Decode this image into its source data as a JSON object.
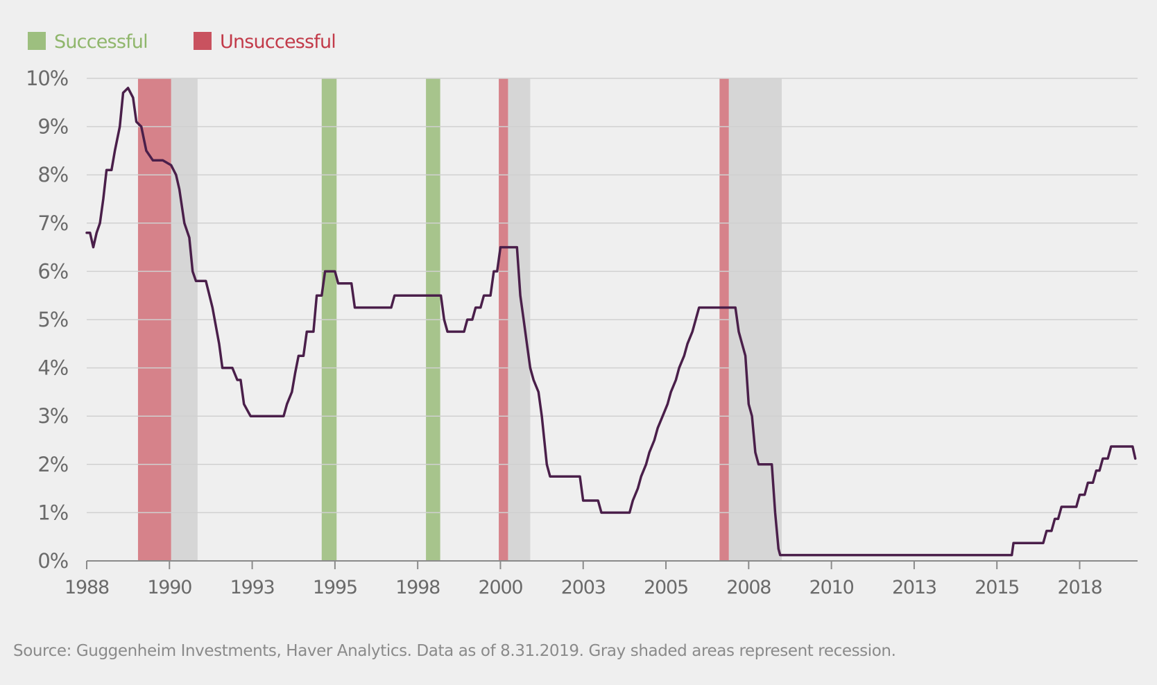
{
  "chart_data": {
    "type": "line",
    "title": "",
    "xlabel": "",
    "ylabel": "",
    "xlim": [
      1988.0,
      2019.75
    ],
    "ylim": [
      0,
      10
    ],
    "y_ticks": [
      0,
      1,
      2,
      3,
      4,
      5,
      6,
      7,
      8,
      9,
      10
    ],
    "y_tick_labels": [
      "0%",
      "1%",
      "2%",
      "3%",
      "4%",
      "5%",
      "6%",
      "7%",
      "8%",
      "9%",
      "10%"
    ],
    "x_ticks": [
      1988,
      1990.5,
      1993,
      1995.5,
      1998,
      2000.5,
      2003,
      2005.5,
      2008,
      2010.5,
      2013,
      2015.5,
      2018
    ],
    "x_tick_labels": [
      "1988",
      "1990",
      "1993",
      "1995",
      "1998",
      "2000",
      "2003",
      "2005",
      "2008",
      "2010",
      "2013",
      "2015",
      "2018"
    ],
    "grid": true,
    "legend": {
      "placement": "top-left",
      "items": [
        {
          "label": "Successful",
          "color": "#9dbf7f"
        },
        {
          "label": "Unsuccessful",
          "color": "#c9525f"
        }
      ]
    },
    "line_color": "#4a1f4a",
    "recession_color": "#d6d6d6",
    "tightening_periods": [
      {
        "start": 1989.55,
        "end": 1990.55,
        "outcome": "unsuccessful"
      },
      {
        "start": 1995.1,
        "end": 1995.55,
        "outcome": "successful"
      },
      {
        "start": 1998.25,
        "end": 1998.68,
        "outcome": "successful"
      },
      {
        "start": 2000.45,
        "end": 2000.73,
        "outcome": "unsuccessful"
      },
      {
        "start": 2007.12,
        "end": 2007.4,
        "outcome": "unsuccessful"
      }
    ],
    "recessions": [
      {
        "start": 1990.55,
        "end": 1991.35
      },
      {
        "start": 2000.73,
        "end": 2001.4
      },
      {
        "start": 2007.4,
        "end": 2009.0
      }
    ],
    "series": [
      {
        "values": [
          [
            1988.0,
            6.8
          ],
          [
            1988.1,
            6.8
          ],
          [
            1988.2,
            6.5
          ],
          [
            1988.3,
            6.8
          ],
          [
            1988.4,
            7.0
          ],
          [
            1988.5,
            7.5
          ],
          [
            1988.6,
            8.1
          ],
          [
            1988.75,
            8.1
          ],
          [
            1988.85,
            8.5
          ],
          [
            1989.0,
            9.0
          ],
          [
            1989.1,
            9.7
          ],
          [
            1989.25,
            9.8
          ],
          [
            1989.4,
            9.6
          ],
          [
            1989.5,
            9.1
          ],
          [
            1989.65,
            9.0
          ],
          [
            1989.8,
            8.5
          ],
          [
            1990.0,
            8.3
          ],
          [
            1990.3,
            8.3
          ],
          [
            1990.55,
            8.2
          ],
          [
            1990.7,
            8.0
          ],
          [
            1990.8,
            7.7
          ],
          [
            1990.95,
            7.0
          ],
          [
            1991.1,
            6.7
          ],
          [
            1991.2,
            6.0
          ],
          [
            1991.3,
            5.8
          ],
          [
            1991.6,
            5.8
          ],
          [
            1991.8,
            5.25
          ],
          [
            1992.0,
            4.5
          ],
          [
            1992.1,
            4.0
          ],
          [
            1992.4,
            4.0
          ],
          [
            1992.55,
            3.75
          ],
          [
            1992.65,
            3.75
          ],
          [
            1992.75,
            3.25
          ],
          [
            1992.95,
            3.0
          ],
          [
            1993.95,
            3.0
          ],
          [
            1994.05,
            3.25
          ],
          [
            1994.2,
            3.5
          ],
          [
            1994.3,
            3.9
          ],
          [
            1994.4,
            4.25
          ],
          [
            1994.55,
            4.25
          ],
          [
            1994.65,
            4.75
          ],
          [
            1994.85,
            4.75
          ],
          [
            1994.95,
            5.5
          ],
          [
            1995.1,
            5.5
          ],
          [
            1995.2,
            6.0
          ],
          [
            1995.5,
            6.0
          ],
          [
            1995.6,
            5.75
          ],
          [
            1996.0,
            5.75
          ],
          [
            1996.1,
            5.25
          ],
          [
            1997.2,
            5.25
          ],
          [
            1997.3,
            5.5
          ],
          [
            1998.7,
            5.5
          ],
          [
            1998.8,
            5.0
          ],
          [
            1998.9,
            4.75
          ],
          [
            1999.4,
            4.75
          ],
          [
            1999.5,
            5.0
          ],
          [
            1999.65,
            5.0
          ],
          [
            1999.75,
            5.25
          ],
          [
            1999.9,
            5.25
          ],
          [
            2000.0,
            5.5
          ],
          [
            2000.2,
            5.5
          ],
          [
            2000.3,
            6.0
          ],
          [
            2000.4,
            6.0
          ],
          [
            2000.5,
            6.5
          ],
          [
            2001.0,
            6.5
          ],
          [
            2001.1,
            5.5
          ],
          [
            2001.2,
            5.0
          ],
          [
            2001.3,
            4.5
          ],
          [
            2001.4,
            4.0
          ],
          [
            2001.5,
            3.75
          ],
          [
            2001.65,
            3.5
          ],
          [
            2001.75,
            3.0
          ],
          [
            2001.9,
            2.0
          ],
          [
            2002.0,
            1.75
          ],
          [
            2002.9,
            1.75
          ],
          [
            2003.0,
            1.25
          ],
          [
            2003.45,
            1.25
          ],
          [
            2003.55,
            1.0
          ],
          [
            2004.4,
            1.0
          ],
          [
            2004.5,
            1.25
          ],
          [
            2004.65,
            1.5
          ],
          [
            2004.75,
            1.75
          ],
          [
            2004.9,
            2.0
          ],
          [
            2005.0,
            2.25
          ],
          [
            2005.15,
            2.5
          ],
          [
            2005.25,
            2.75
          ],
          [
            2005.4,
            3.0
          ],
          [
            2005.55,
            3.25
          ],
          [
            2005.65,
            3.5
          ],
          [
            2005.8,
            3.75
          ],
          [
            2005.9,
            4.0
          ],
          [
            2006.05,
            4.25
          ],
          [
            2006.15,
            4.5
          ],
          [
            2006.3,
            4.75
          ],
          [
            2006.4,
            5.0
          ],
          [
            2006.5,
            5.25
          ],
          [
            2007.6,
            5.25
          ],
          [
            2007.7,
            4.75
          ],
          [
            2007.8,
            4.5
          ],
          [
            2007.9,
            4.25
          ],
          [
            2008.0,
            3.25
          ],
          [
            2008.1,
            3.0
          ],
          [
            2008.2,
            2.25
          ],
          [
            2008.3,
            2.0
          ],
          [
            2008.7,
            2.0
          ],
          [
            2008.8,
            1.0
          ],
          [
            2008.9,
            0.25
          ],
          [
            2008.95,
            0.12
          ],
          [
            2015.95,
            0.12
          ],
          [
            2016.0,
            0.37
          ],
          [
            2016.9,
            0.37
          ],
          [
            2017.0,
            0.62
          ],
          [
            2017.15,
            0.62
          ],
          [
            2017.25,
            0.87
          ],
          [
            2017.35,
            0.87
          ],
          [
            2017.45,
            1.12
          ],
          [
            2017.9,
            1.12
          ],
          [
            2018.0,
            1.37
          ],
          [
            2018.15,
            1.37
          ],
          [
            2018.25,
            1.62
          ],
          [
            2018.4,
            1.62
          ],
          [
            2018.5,
            1.87
          ],
          [
            2018.6,
            1.87
          ],
          [
            2018.7,
            2.12
          ],
          [
            2018.85,
            2.12
          ],
          [
            2018.95,
            2.37
          ],
          [
            2019.5,
            2.37
          ],
          [
            2019.6,
            2.37
          ],
          [
            2019.68,
            2.12
          ]
        ]
      }
    ]
  },
  "source_note": "Source: Guggenheim Investments, Haver Analytics. Data as of 8.31.2019. Gray shaded areas represent recession."
}
